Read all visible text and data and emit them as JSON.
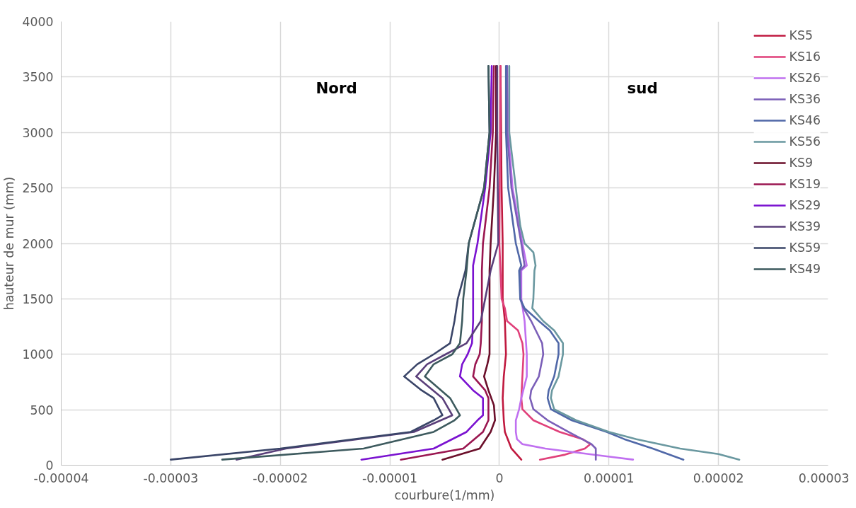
{
  "chart_data": {
    "type": "line",
    "xlabel": "courbure(1/mm)",
    "ylabel": "hauteur de mur (mm)",
    "annotations": [
      "Nord",
      "sud"
    ],
    "xlim": [
      -4e-05,
      3e-05
    ],
    "xticks": [
      {
        "value": -4e-05,
        "label": "-0.00004"
      },
      {
        "value": -3e-05,
        "label": "-0.00003"
      },
      {
        "value": -2e-05,
        "label": "-0.00002"
      },
      {
        "value": -1e-05,
        "label": "-0.00001"
      },
      {
        "value": 0,
        "label": "0"
      },
      {
        "value": 1e-05,
        "label": "0.00001"
      },
      {
        "value": 2e-05,
        "label": "0.00002"
      },
      {
        "value": 3e-05,
        "label": "0.00003"
      }
    ],
    "ylim": [
      0,
      4000
    ],
    "yticks": [
      0,
      500,
      1000,
      1500,
      2000,
      2500,
      3000,
      3500,
      4000
    ],
    "grid": true,
    "legend": "top right",
    "marker": "none",
    "line_style": "solid",
    "series": [
      {
        "name": "KS5",
        "color": "#c0193f",
        "x": [
          2e-06,
          1.1e-06,
          5e-07,
          4e-07,
          3e-07,
          4e-07,
          6e-07,
          5e-07,
          3e-07,
          3e-07,
          2e-07,
          1e-07
        ],
        "values": [
          50,
          150,
          300,
          405,
          605,
          800,
          1000,
          1300,
          1500,
          2000,
          2500,
          3600
        ]
      },
      {
        "name": "KS16",
        "color": "#e0407a",
        "x": [
          3.7e-06,
          6e-06,
          7.8e-06,
          8.3e-06,
          7.6e-06,
          5.5e-06,
          3.1e-06,
          2.1e-06,
          2e-06,
          2.1e-06,
          2.2e-06,
          2.1e-06,
          1.7e-06,
          7e-07,
          5e-07,
          2e-07,
          0.0,
          1e-07
        ],
        "values": [
          50,
          95,
          150,
          190,
          235,
          300,
          405,
          505,
          605,
          800,
          1000,
          1100,
          1215,
          1300,
          1415,
          1500,
          2000,
          3600
        ]
      },
      {
        "name": "KS26",
        "color": "#c070f0",
        "x": [
          1.22e-05,
          9.8e-06,
          4.2e-06,
          2.1e-06,
          1.6e-06,
          1.5e-06,
          1.5e-06,
          1.8e-06,
          2e-06,
          2.5e-06,
          2.5e-06,
          2.3e-06,
          2e-06,
          2e-06,
          2.5e-06,
          2.1e-06,
          1.2e-06,
          8e-07,
          7e-07
        ],
        "values": [
          50,
          80,
          150,
          190,
          235,
          300,
          405,
          505,
          605,
          800,
          1000,
          1300,
          1500,
          1755,
          1800,
          2000,
          2500,
          3000,
          3600
        ]
      },
      {
        "name": "KS36",
        "color": "#7b5fb8",
        "x": [
          8.8e-06,
          8.8e-06,
          8.4e-06,
          6.3e-06,
          4.4e-06,
          3.1e-06,
          2.8e-06,
          2.9e-06,
          3.6e-06,
          4e-06,
          3.9e-06,
          2.9e-06,
          2.2e-06,
          1.9e-06,
          1.9e-06,
          2.3e-06,
          2e-06,
          1.1e-06,
          7e-07,
          7e-07
        ],
        "values": [
          50,
          150,
          190,
          300,
          405,
          505,
          605,
          675,
          800,
          1000,
          1100,
          1300,
          1415,
          1500,
          1755,
          1800,
          2000,
          2500,
          3000,
          3600
        ]
      },
      {
        "name": "KS46",
        "color": "#5068a8",
        "x": [
          1.68e-05,
          1.4e-05,
          1.14e-05,
          9.8e-06,
          6.6e-06,
          4.7e-06,
          4.4e-06,
          4.5e-06,
          5e-06,
          5.4e-06,
          5.4e-06,
          4.6e-06,
          3.6e-06,
          2.3e-06,
          1.9e-06,
          1.8e-06,
          2e-06,
          1.5e-06,
          8e-07,
          6e-07,
          6e-07
        ],
        "values": [
          50,
          150,
          235,
          300,
          405,
          505,
          605,
          675,
          800,
          1000,
          1100,
          1215,
          1300,
          1415,
          1500,
          1755,
          1800,
          2000,
          2500,
          3000,
          3600
        ]
      },
      {
        "name": "KS56",
        "color": "#6a98a0",
        "x": [
          2.19e-05,
          2e-05,
          1.65e-05,
          1.25e-05,
          1e-05,
          7e-06,
          5e-06,
          4.7e-06,
          4.8e-06,
          5.4e-06,
          5.8e-06,
          5.8e-06,
          5e-06,
          4e-06,
          3e-06,
          3.1e-06,
          3.2e-06,
          3.3e-06,
          3.1e-06,
          2.3e-06,
          1.9e-06,
          1.5e-06,
          9e-07,
          9e-07
        ],
        "values": [
          50,
          100,
          150,
          235,
          300,
          405,
          505,
          605,
          675,
          800,
          1000,
          1100,
          1215,
          1300,
          1415,
          1500,
          1755,
          1800,
          1920,
          2000,
          2160,
          2500,
          3000,
          3600
        ]
      },
      {
        "name": "KS9",
        "color": "#6b0f2a",
        "x": [
          -5.2e-06,
          -1.8e-06,
          -8e-07,
          -4e-07,
          -5e-07,
          -1e-06,
          -1.4e-06,
          -1.1e-06,
          -9e-07,
          -9e-07,
          -9e-07,
          -9e-07,
          -8e-07,
          -5e-07,
          -3e-07,
          -3e-07
        ],
        "values": [
          50,
          150,
          300,
          405,
          540,
          675,
          800,
          910,
          1000,
          1300,
          1500,
          1755,
          2000,
          2500,
          3000,
          3600
        ]
      },
      {
        "name": "KS19",
        "color": "#9a1650",
        "x": [
          -9e-06,
          -3.3e-06,
          -1.5e-06,
          -1e-06,
          -1e-06,
          -1.3e-06,
          -2.4e-06,
          -2.2e-06,
          -1.8e-06,
          -1.7e-06,
          -1.6e-06,
          -1.6e-06,
          -1.6e-06,
          -1.5e-06,
          -9e-07,
          -6e-07,
          -5e-07
        ],
        "values": [
          50,
          150,
          300,
          405,
          605,
          675,
          800,
          910,
          1000,
          1100,
          1300,
          1500,
          1755,
          2000,
          2500,
          3000,
          3600
        ]
      },
      {
        "name": "KS29",
        "color": "#7a12d0",
        "x": [
          -1.26e-05,
          -6e-06,
          -3e-06,
          -2e-06,
          -1.5e-06,
          -1.5e-06,
          -2.4e-06,
          -3.6e-06,
          -3.4e-06,
          -2.9e-06,
          -2.5e-06,
          -2.4e-06,
          -2.4e-06,
          -2.4e-06,
          -2.4e-06,
          -2e-06,
          -1.3e-06,
          -8e-07,
          -7e-07
        ],
        "values": [
          50,
          150,
          300,
          405,
          450,
          605,
          675,
          800,
          910,
          1000,
          1100,
          1300,
          1500,
          1755,
          1800,
          2000,
          2500,
          3000,
          3600
        ]
      },
      {
        "name": "KS39",
        "color": "#5a3f7a",
        "x": [
          -2.4e-05,
          -1.95e-05,
          -7.8e-06,
          -4.3e-06,
          -5.2e-06,
          -7.6e-06,
          -6.6e-06,
          -4.9e-06,
          -3e-06,
          -1.7e-06,
          -1.3e-06,
          -8e-07,
          -1e-07,
          -2e-07,
          -2e-07
        ],
        "values": [
          50,
          150,
          300,
          450,
          605,
          800,
          910,
          1000,
          1100,
          1300,
          1500,
          1755,
          2000,
          3000,
          3600
        ]
      },
      {
        "name": "KS59",
        "color": "#3a4568",
        "x": [
          -3e-05,
          -2e-05,
          -8.1e-06,
          -6e-06,
          -5.2e-06,
          -6e-06,
          -7.1e-06,
          -8.7e-06,
          -7.5e-06,
          -6e-06,
          -4.5e-06,
          -4.1e-06,
          -3.8e-06,
          -3.1e-06,
          -2.8e-06,
          -1.4e-06,
          -9e-07,
          -1e-06
        ],
        "values": [
          50,
          150,
          300,
          405,
          450,
          605,
          675,
          800,
          910,
          1000,
          1100,
          1300,
          1500,
          1755,
          2000,
          2500,
          3000,
          3600
        ]
      },
      {
        "name": "KS49",
        "color": "#3d5a5e",
        "x": [
          -2.53e-05,
          -1.24e-05,
          -6e-06,
          -4.1e-06,
          -3.6e-06,
          -4.5e-06,
          -6.8e-06,
          -6e-06,
          -4.3e-06,
          -3.6e-06,
          -3.4e-06,
          -3.3e-06,
          -3e-06,
          -2.8e-06,
          -1.4e-06,
          -9e-07,
          -1e-06
        ],
        "values": [
          50,
          150,
          300,
          405,
          450,
          605,
          800,
          910,
          1000,
          1100,
          1300,
          1500,
          1755,
          2000,
          2500,
          3000,
          3600
        ]
      }
    ]
  }
}
